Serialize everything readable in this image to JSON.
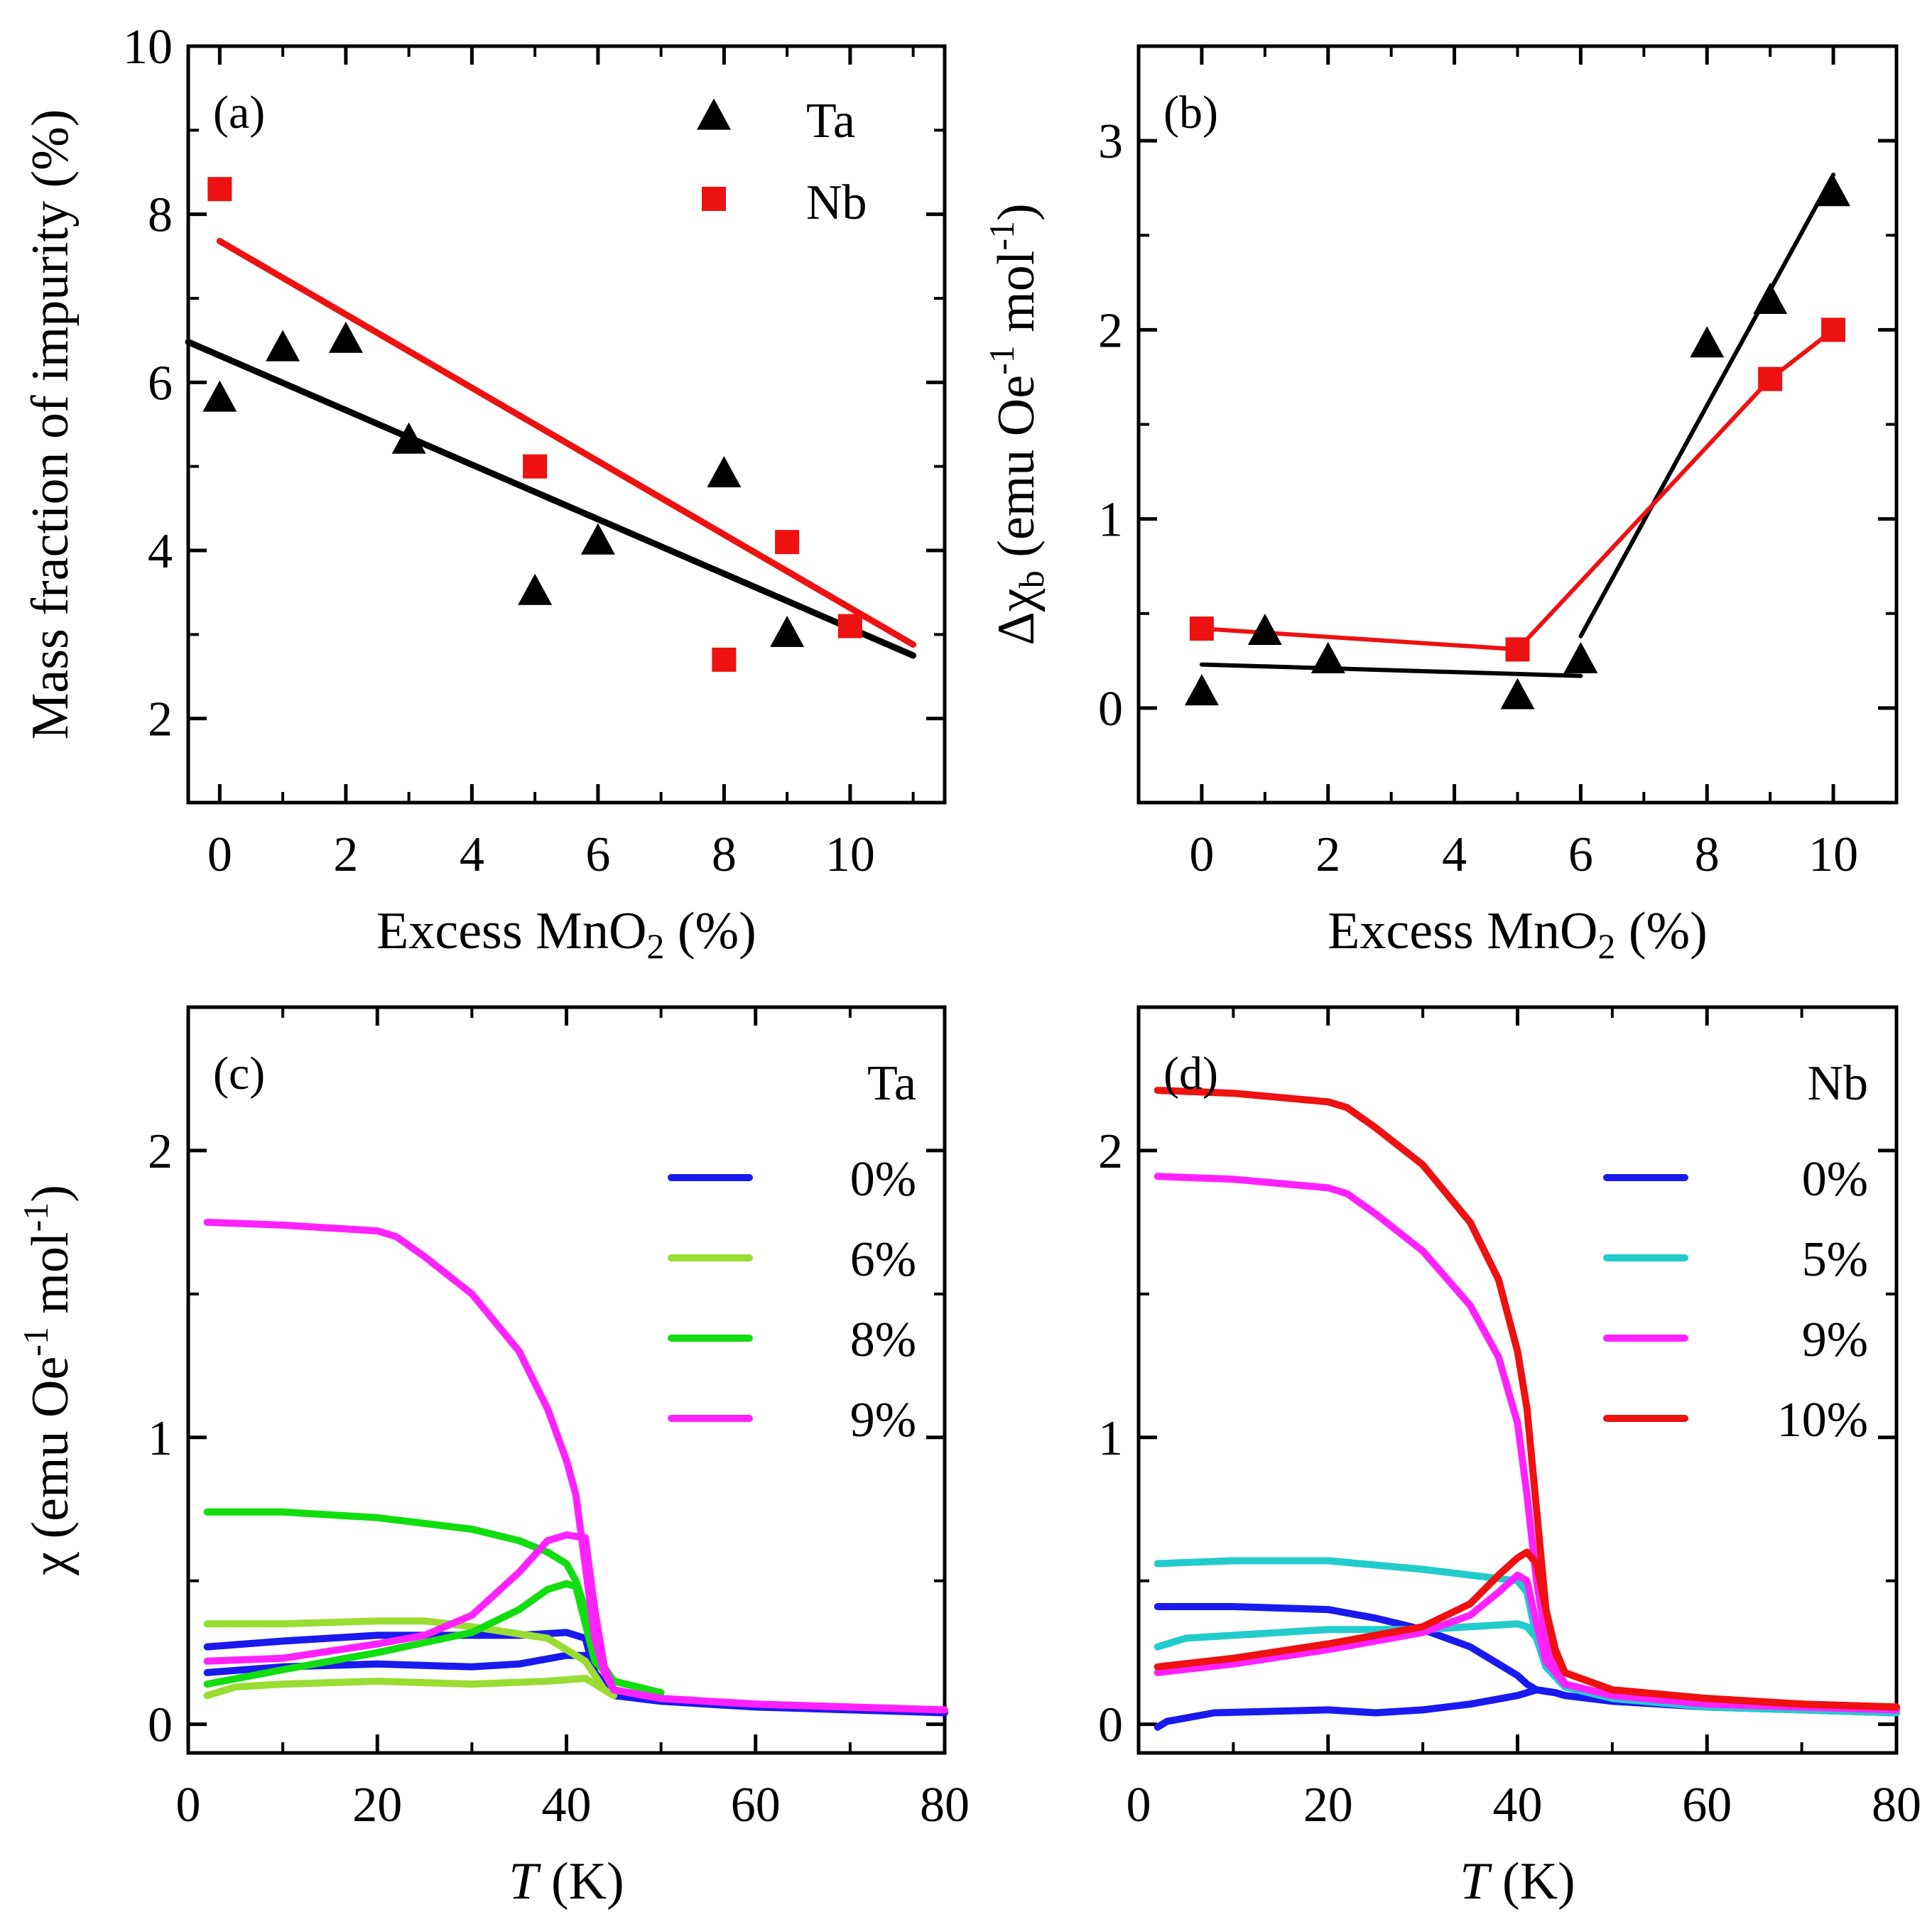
{
  "chart_data": [
    {
      "panel": "(a)",
      "type": "scatter",
      "xlabel": "Excess MnO",
      "xlabel_sub": "2",
      "xlabel_tail": " (%)",
      "ylabel": "Mass fraction of impurity (%)",
      "xlim": [
        -0.5,
        11.5
      ],
      "ylim": [
        1,
        10
      ],
      "xticks": [
        0,
        2,
        4,
        6,
        8,
        10
      ],
      "yticks": [
        2,
        4,
        6,
        8,
        10
      ],
      "legend_position": "top-right",
      "series": [
        {
          "name": "Ta",
          "marker": "triangle",
          "color": "#000000",
          "x": [
            0,
            1,
            2,
            3,
            5,
            6,
            8,
            9
          ],
          "y": [
            5.8,
            6.4,
            6.5,
            5.3,
            3.5,
            4.1,
            4.9,
            3.0
          ],
          "fit": {
            "x": [
              -0.5,
              11
            ],
            "y": [
              6.48,
              2.75
            ]
          }
        },
        {
          "name": "Nb",
          "marker": "square",
          "color": "#ee1111",
          "x": [
            0,
            5,
            8,
            9,
            10
          ],
          "y": [
            8.3,
            5.0,
            2.7,
            4.1,
            3.1
          ],
          "fit": {
            "x": [
              0,
              11
            ],
            "y": [
              7.68,
              2.88
            ]
          }
        }
      ]
    },
    {
      "panel": "(b)",
      "type": "scatter",
      "xlabel": "Excess MnO",
      "xlabel_sub": "2",
      "xlabel_tail": " (%)",
      "ylabel_pre": "Δχ",
      "ylabel_sub": "b",
      "ylabel_mid": " (emu Oe",
      "ylabel_sup1": "-1",
      "ylabel_mid2": " mol",
      "ylabel_sup2": "-1",
      "ylabel_end": ")",
      "xlim": [
        -1,
        11
      ],
      "ylim": [
        -0.5,
        3.5
      ],
      "xticks": [
        0,
        2,
        4,
        6,
        8,
        10
      ],
      "yticks": [
        0,
        1,
        2,
        3
      ],
      "series": [
        {
          "name": "Ta",
          "marker": "triangle",
          "color": "#000000",
          "x": [
            0,
            1,
            2,
            5,
            6,
            8,
            9,
            10
          ],
          "y": [
            0.08,
            0.4,
            0.25,
            0.06,
            0.25,
            1.92,
            2.15,
            2.72
          ],
          "fits": [
            {
              "x": [
                0,
                6
              ],
              "y": [
                0.23,
                0.17
              ]
            },
            {
              "x": [
                6,
                10
              ],
              "y": [
                0.38,
                2.82
              ]
            }
          ]
        },
        {
          "name": "Nb",
          "marker": "square",
          "color": "#ee1111",
          "x": [
            0,
            5,
            9,
            10
          ],
          "y": [
            0.42,
            0.31,
            1.74,
            2.0
          ],
          "fits": [
            {
              "x": [
                0,
                5
              ],
              "y": [
                0.42,
                0.31
              ]
            },
            {
              "x": [
                5,
                9,
                10
              ],
              "y": [
                0.31,
                1.74,
                2.0
              ]
            }
          ]
        }
      ]
    },
    {
      "panel": "(c)",
      "type": "line",
      "title": "Ta",
      "xlabel": "T",
      "xlabel_tail": " (K)",
      "ylabel": "χ (emu  Oe",
      "ylabel_sup1": "-1",
      "ylabel_mid2": " mol",
      "ylabel_sup2": "-1",
      "ylabel_end": ")",
      "xlim": [
        0,
        80
      ],
      "ylim": [
        -0.1,
        2.5
      ],
      "xticks": [
        0,
        20,
        40,
        60,
        80
      ],
      "yticks": [
        0,
        1,
        2
      ],
      "legend_position": "right",
      "series": [
        {
          "name": "0%",
          "color": "#1a1aee",
          "zfc": {
            "x": [
              2,
              10,
              20,
              30,
              35,
              40,
              42,
              43,
              45,
              50,
              60,
              70,
              80
            ],
            "y": [
              0.18,
              0.2,
              0.21,
              0.2,
              0.21,
              0.24,
              0.24,
              0.18,
              0.1,
              0.08,
              0.06,
              0.05,
              0.04
            ]
          },
          "fc": {
            "x": [
              2,
              10,
              20,
              30,
              35,
              40,
              42,
              43,
              45
            ],
            "y": [
              0.27,
              0.29,
              0.31,
              0.31,
              0.31,
              0.32,
              0.3,
              0.18,
              0.1
            ]
          }
        },
        {
          "name": "6%",
          "color": "#99dd33",
          "zfc": {
            "x": [
              2,
              5,
              10,
              20,
              30,
              38,
              42,
              44,
              45
            ],
            "y": [
              0.1,
              0.13,
              0.14,
              0.15,
              0.14,
              0.15,
              0.16,
              0.12,
              0.1
            ]
          },
          "fc": {
            "x": [
              2,
              10,
              20,
              25,
              30,
              38,
              42,
              44,
              45
            ],
            "y": [
              0.35,
              0.35,
              0.36,
              0.36,
              0.34,
              0.3,
              0.22,
              0.12,
              0.1
            ]
          }
        },
        {
          "name": "8%",
          "color": "#11dd11",
          "zfc": {
            "x": [
              2,
              10,
              20,
              30,
              35,
              38,
              40,
              41,
              42,
              43,
              45,
              50
            ],
            "y": [
              0.14,
              0.19,
              0.25,
              0.32,
              0.4,
              0.47,
              0.49,
              0.48,
              0.35,
              0.22,
              0.15,
              0.11
            ]
          },
          "fc": {
            "x": [
              2,
              10,
              20,
              30,
              35,
              38,
              40,
              41,
              42,
              43,
              45,
              50
            ],
            "y": [
              0.74,
              0.74,
              0.72,
              0.68,
              0.64,
              0.6,
              0.56,
              0.5,
              0.4,
              0.25,
              0.15,
              0.11
            ]
          }
        },
        {
          "name": "9%",
          "color": "#ff22ff",
          "zfc": {
            "x": [
              2,
              10,
              20,
              25,
              30,
              35,
              38,
              40,
              42,
              43,
              44,
              45,
              50,
              60,
              70,
              80
            ],
            "y": [
              0.22,
              0.23,
              0.28,
              0.31,
              0.38,
              0.53,
              0.64,
              0.66,
              0.65,
              0.4,
              0.2,
              0.12,
              0.09,
              0.07,
              0.06,
              0.05
            ]
          },
          "fc": {
            "x": [
              2,
              10,
              20,
              22,
              25,
              30,
              35,
              38,
              40,
              41,
              42,
              43,
              44,
              45,
              50,
              60,
              70,
              80
            ],
            "y": [
              1.75,
              1.74,
              1.72,
              1.7,
              1.63,
              1.5,
              1.3,
              1.1,
              0.92,
              0.8,
              0.55,
              0.3,
              0.18,
              0.12,
              0.09,
              0.07,
              0.06,
              0.05
            ]
          }
        }
      ]
    },
    {
      "panel": "(d)",
      "type": "line",
      "title": "Nb",
      "xlabel": "T",
      "xlabel_tail": " (K)",
      "xlim": [
        0,
        80
      ],
      "ylim": [
        -0.1,
        2.5
      ],
      "xticks": [
        0,
        20,
        40,
        60,
        80
      ],
      "yticks": [
        0,
        1,
        2
      ],
      "legend_position": "right",
      "series": [
        {
          "name": "0%",
          "color": "#1a1aee",
          "zfc": {
            "x": [
              2,
              3,
              8,
              20,
              25,
              30,
              35,
              40,
              42,
              44,
              45,
              50,
              60,
              70,
              80
            ],
            "y": [
              -0.01,
              0.01,
              0.04,
              0.05,
              0.04,
              0.05,
              0.07,
              0.1,
              0.12,
              0.11,
              0.1,
              0.08,
              0.06,
              0.05,
              0.04
            ]
          },
          "fc": {
            "x": [
              2,
              10,
              20,
              25,
              30,
              35,
              38,
              40,
              41,
              42,
              44,
              45
            ],
            "y": [
              0.41,
              0.41,
              0.4,
              0.37,
              0.33,
              0.27,
              0.21,
              0.17,
              0.14,
              0.12,
              0.11,
              0.1
            ]
          }
        },
        {
          "name": "5%",
          "color": "#22cccc",
          "zfc": {
            "x": [
              2,
              5,
              10,
              20,
              30,
              35,
              40,
              41,
              42,
              43,
              45,
              50,
              60,
              70,
              80
            ],
            "y": [
              0.27,
              0.3,
              0.31,
              0.33,
              0.33,
              0.34,
              0.35,
              0.34,
              0.3,
              0.2,
              0.13,
              0.09,
              0.06,
              0.05,
              0.04
            ]
          },
          "fc": {
            "x": [
              2,
              10,
              20,
              30,
              35,
              40,
              41,
              42,
              43,
              45
            ],
            "y": [
              0.56,
              0.57,
              0.57,
              0.54,
              0.52,
              0.5,
              0.46,
              0.3,
              0.2,
              0.13
            ]
          }
        },
        {
          "name": "9%",
          "color": "#ff22ff",
          "zfc": {
            "x": [
              2,
              10,
              20,
              30,
              35,
              38,
              40,
              41,
              42,
              43,
              45,
              50,
              60,
              70,
              80
            ],
            "y": [
              0.18,
              0.21,
              0.26,
              0.32,
              0.38,
              0.46,
              0.52,
              0.5,
              0.35,
              0.22,
              0.14,
              0.1,
              0.07,
              0.06,
              0.05
            ]
          },
          "fc": {
            "x": [
              2,
              10,
              20,
              22,
              25,
              30,
              35,
              38,
              40,
              41,
              42,
              43,
              44,
              45,
              50,
              60,
              70,
              80
            ],
            "y": [
              1.91,
              1.9,
              1.87,
              1.85,
              1.78,
              1.65,
              1.46,
              1.28,
              1.05,
              0.8,
              0.5,
              0.3,
              0.2,
              0.14,
              0.1,
              0.07,
              0.06,
              0.05
            ]
          }
        },
        {
          "name": "10%",
          "color": "#ee1111",
          "zfc": {
            "x": [
              2,
              10,
              20,
              30,
              35,
              38,
              40,
              41,
              42,
              43,
              44,
              45,
              50,
              60,
              70,
              80
            ],
            "y": [
              0.2,
              0.23,
              0.28,
              0.34,
              0.42,
              0.52,
              0.58,
              0.6,
              0.56,
              0.4,
              0.26,
              0.18,
              0.12,
              0.09,
              0.07,
              0.06
            ]
          },
          "fc": {
            "x": [
              2,
              10,
              20,
              22,
              25,
              30,
              35,
              38,
              40,
              41,
              42,
              43,
              44,
              45,
              50,
              60,
              70,
              80
            ],
            "y": [
              2.21,
              2.2,
              2.17,
              2.15,
              2.08,
              1.95,
              1.75,
              1.55,
              1.3,
              1.1,
              0.75,
              0.4,
              0.25,
              0.18,
              0.12,
              0.09,
              0.07,
              0.06
            ]
          }
        }
      ]
    }
  ]
}
